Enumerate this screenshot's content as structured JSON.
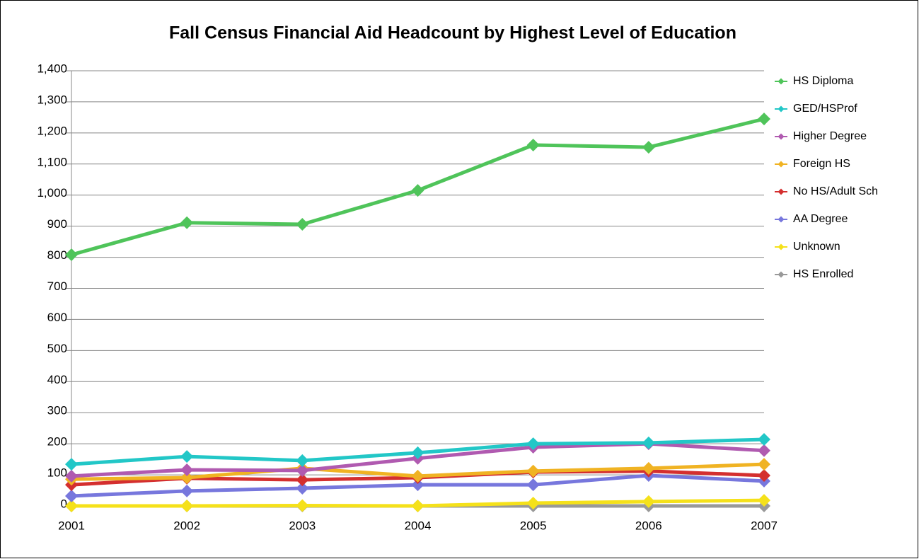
{
  "chart_data": {
    "type": "line",
    "title": "Fall Census Financial Aid Headcount by Highest Level of Education",
    "categories": [
      "2001",
      "2002",
      "2003",
      "2004",
      "2005",
      "2006",
      "2007"
    ],
    "series": [
      {
        "name": "HS Diploma",
        "color": "#4fc45a",
        "values": [
          808,
          911,
          906,
          1015,
          1161,
          1154,
          1245
        ]
      },
      {
        "name": "GED/HSProf",
        "color": "#22c7c7",
        "values": [
          134,
          159,
          146,
          171,
          200,
          203,
          214
        ]
      },
      {
        "name": "Higher Degree",
        "color": "#b05ab0",
        "values": [
          96,
          116,
          114,
          153,
          189,
          200,
          178
        ]
      },
      {
        "name": "Foreign HS",
        "color": "#f0b323",
        "values": [
          86,
          91,
          121,
          96,
          112,
          121,
          134
        ]
      },
      {
        "name": "No HS/Adult Sch",
        "color": "#d42f2f",
        "values": [
          68,
          89,
          84,
          91,
          109,
          112,
          98
        ]
      },
      {
        "name": "AA Degree",
        "color": "#7777dd",
        "values": [
          32,
          48,
          57,
          68,
          68,
          98,
          80
        ]
      },
      {
        "name": "Unknown",
        "color": "#f5e11a",
        "values": [
          0,
          0,
          1,
          0,
          9,
          14,
          18
        ]
      },
      {
        "name": "HS Enrolled",
        "color": "#999999",
        "values": [
          0,
          0,
          0,
          0,
          0,
          0,
          0
        ]
      }
    ],
    "ylim": [
      0,
      1400
    ],
    "yticks": [
      0,
      100,
      200,
      300,
      400,
      500,
      600,
      700,
      800,
      900,
      {
        "value": 1000,
        "label": "1,000"
      },
      {
        "value": 1100,
        "label": "1,100"
      },
      {
        "value": 1200,
        "label": "1,200"
      },
      {
        "value": 1300,
        "label": "1,300"
      },
      {
        "value": 1400,
        "label": "1,400"
      }
    ],
    "grid": true,
    "legend": "right"
  }
}
